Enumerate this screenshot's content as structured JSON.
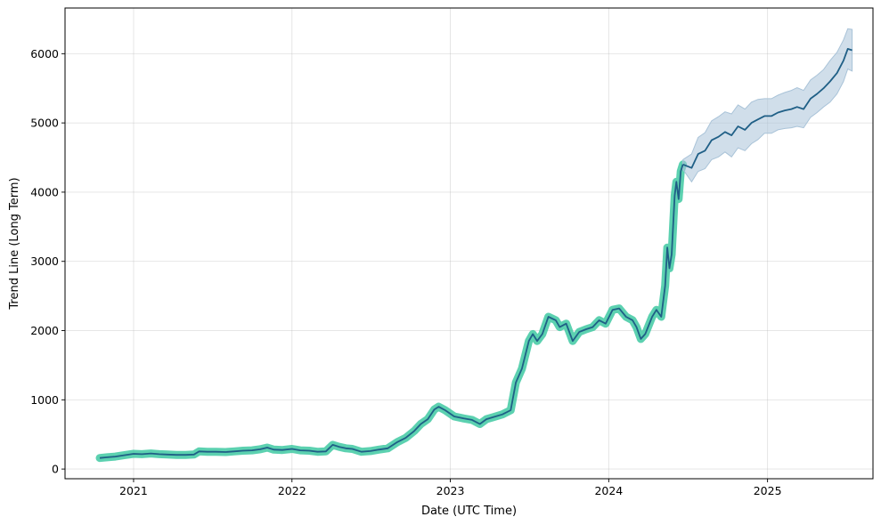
{
  "chart_data": {
    "type": "line",
    "title": "",
    "xlabel": "Date (UTC Time)",
    "ylabel": "Trend Line (Long Term)",
    "xlim": [
      "2020-07-27",
      "2025-09-01"
    ],
    "ylim": [
      -140,
      6660
    ],
    "x_ticks": [
      "2021-01-01",
      "2022-01-01",
      "2023-01-01",
      "2024-01-01",
      "2025-01-01"
    ],
    "x_tick_labels": [
      "2021",
      "2022",
      "2023",
      "2024",
      "2025"
    ],
    "y_ticks": [
      0,
      1000,
      2000,
      3000,
      4000,
      5000,
      6000
    ],
    "y_tick_labels": [
      "0",
      "1000",
      "2000",
      "3000",
      "4000",
      "5000",
      "6000"
    ],
    "grid": true,
    "colors": {
      "trend_line": "#1f5f86",
      "historical_band": "#40c9a2",
      "forecast_band": "#a9c3d8"
    },
    "series": [
      {
        "kind": "historical",
        "x": [
          "2020-10-15",
          "2020-11-01",
          "2020-11-20",
          "2020-12-10",
          "2021-01-01",
          "2021-01-20",
          "2021-02-10",
          "2021-03-01",
          "2021-03-20",
          "2021-04-10",
          "2021-05-01",
          "2021-05-20",
          "2021-06-01",
          "2021-06-20",
          "2021-07-10",
          "2021-08-01",
          "2021-08-20",
          "2021-09-10",
          "2021-10-01",
          "2021-10-20",
          "2021-11-05",
          "2021-11-20",
          "2021-12-10",
          "2022-01-01",
          "2022-01-20",
          "2022-02-10",
          "2022-03-01",
          "2022-03-20",
          "2022-04-05",
          "2022-04-20",
          "2022-05-05",
          "2022-05-20",
          "2022-06-10",
          "2022-07-01",
          "2022-07-20",
          "2022-08-10",
          "2022-09-01",
          "2022-09-20",
          "2022-10-10",
          "2022-10-25",
          "2022-11-10",
          "2022-11-25",
          "2022-12-05",
          "2022-12-20",
          "2023-01-10",
          "2023-02-01",
          "2023-02-20",
          "2023-03-10",
          "2023-03-25",
          "2023-04-10",
          "2023-05-01",
          "2023-05-20",
          "2023-06-01",
          "2023-06-15",
          "2023-07-01",
          "2023-07-10",
          "2023-07-20",
          "2023-08-01",
          "2023-08-15",
          "2023-09-01",
          "2023-09-10",
          "2023-09-25",
          "2023-10-10",
          "2023-10-25",
          "2023-11-10",
          "2023-11-25",
          "2023-12-10",
          "2023-12-25",
          "2024-01-10",
          "2024-01-25",
          "2024-02-10",
          "2024-02-25",
          "2024-03-05",
          "2024-03-15",
          "2024-03-25",
          "2024-04-10",
          "2024-04-20",
          "2024-05-01",
          "2024-05-10",
          "2024-05-15",
          "2024-05-20",
          "2024-05-25",
          "2024-06-01",
          "2024-06-05",
          "2024-06-10",
          "2024-06-15",
          "2024-06-20"
        ],
        "y": [
          160,
          170,
          180,
          200,
          220,
          215,
          225,
          215,
          210,
          205,
          205,
          210,
          255,
          250,
          250,
          245,
          255,
          265,
          270,
          285,
          310,
          280,
          275,
          290,
          270,
          265,
          250,
          255,
          350,
          320,
          300,
          290,
          250,
          260,
          280,
          300,
          390,
          450,
          550,
          650,
          720,
          860,
          900,
          850,
          760,
          730,
          710,
          650,
          720,
          750,
          790,
          850,
          1250,
          1450,
          1850,
          1950,
          1850,
          1950,
          2200,
          2150,
          2050,
          2100,
          1850,
          1980,
          2020,
          2050,
          2150,
          2100,
          2300,
          2320,
          2200,
          2150,
          2050,
          1880,
          1950,
          2200,
          2300,
          2200,
          2650,
          3200,
          2900,
          3100,
          3950,
          4150,
          3900,
          4300,
          4400
        ],
        "band_halfwidth": 60
      },
      {
        "kind": "forecast",
        "x": [
          "2024-06-20",
          "2024-07-10",
          "2024-07-25",
          "2024-08-10",
          "2024-08-25",
          "2024-09-10",
          "2024-09-25",
          "2024-10-10",
          "2024-10-25",
          "2024-11-10",
          "2024-11-25",
          "2024-12-10",
          "2024-12-25",
          "2025-01-10",
          "2025-01-25",
          "2025-02-10",
          "2025-02-25",
          "2025-03-10",
          "2025-03-25",
          "2025-04-10",
          "2025-04-25",
          "2025-05-10",
          "2025-05-25",
          "2025-06-10",
          "2025-06-25",
          "2025-07-05",
          "2025-07-15"
        ],
        "y": [
          4400,
          4350,
          4550,
          4600,
          4750,
          4800,
          4870,
          4820,
          4950,
          4900,
          5000,
          5050,
          5100,
          5100,
          5150,
          5180,
          5200,
          5230,
          5200,
          5350,
          5420,
          5500,
          5600,
          5720,
          5900,
          6070,
          6050
        ],
        "band_low": [
          4330,
          4150,
          4300,
          4340,
          4470,
          4510,
          4580,
          4510,
          4640,
          4600,
          4700,
          4760,
          4850,
          4850,
          4900,
          4920,
          4930,
          4950,
          4930,
          5080,
          5150,
          5230,
          5300,
          5420,
          5600,
          5780,
          5750
        ],
        "band_high": [
          4470,
          4550,
          4790,
          4860,
          5030,
          5090,
          5160,
          5130,
          5260,
          5200,
          5300,
          5340,
          5350,
          5350,
          5400,
          5440,
          5470,
          5510,
          5470,
          5620,
          5690,
          5770,
          5900,
          6020,
          6200,
          6360,
          6350
        ]
      }
    ]
  }
}
